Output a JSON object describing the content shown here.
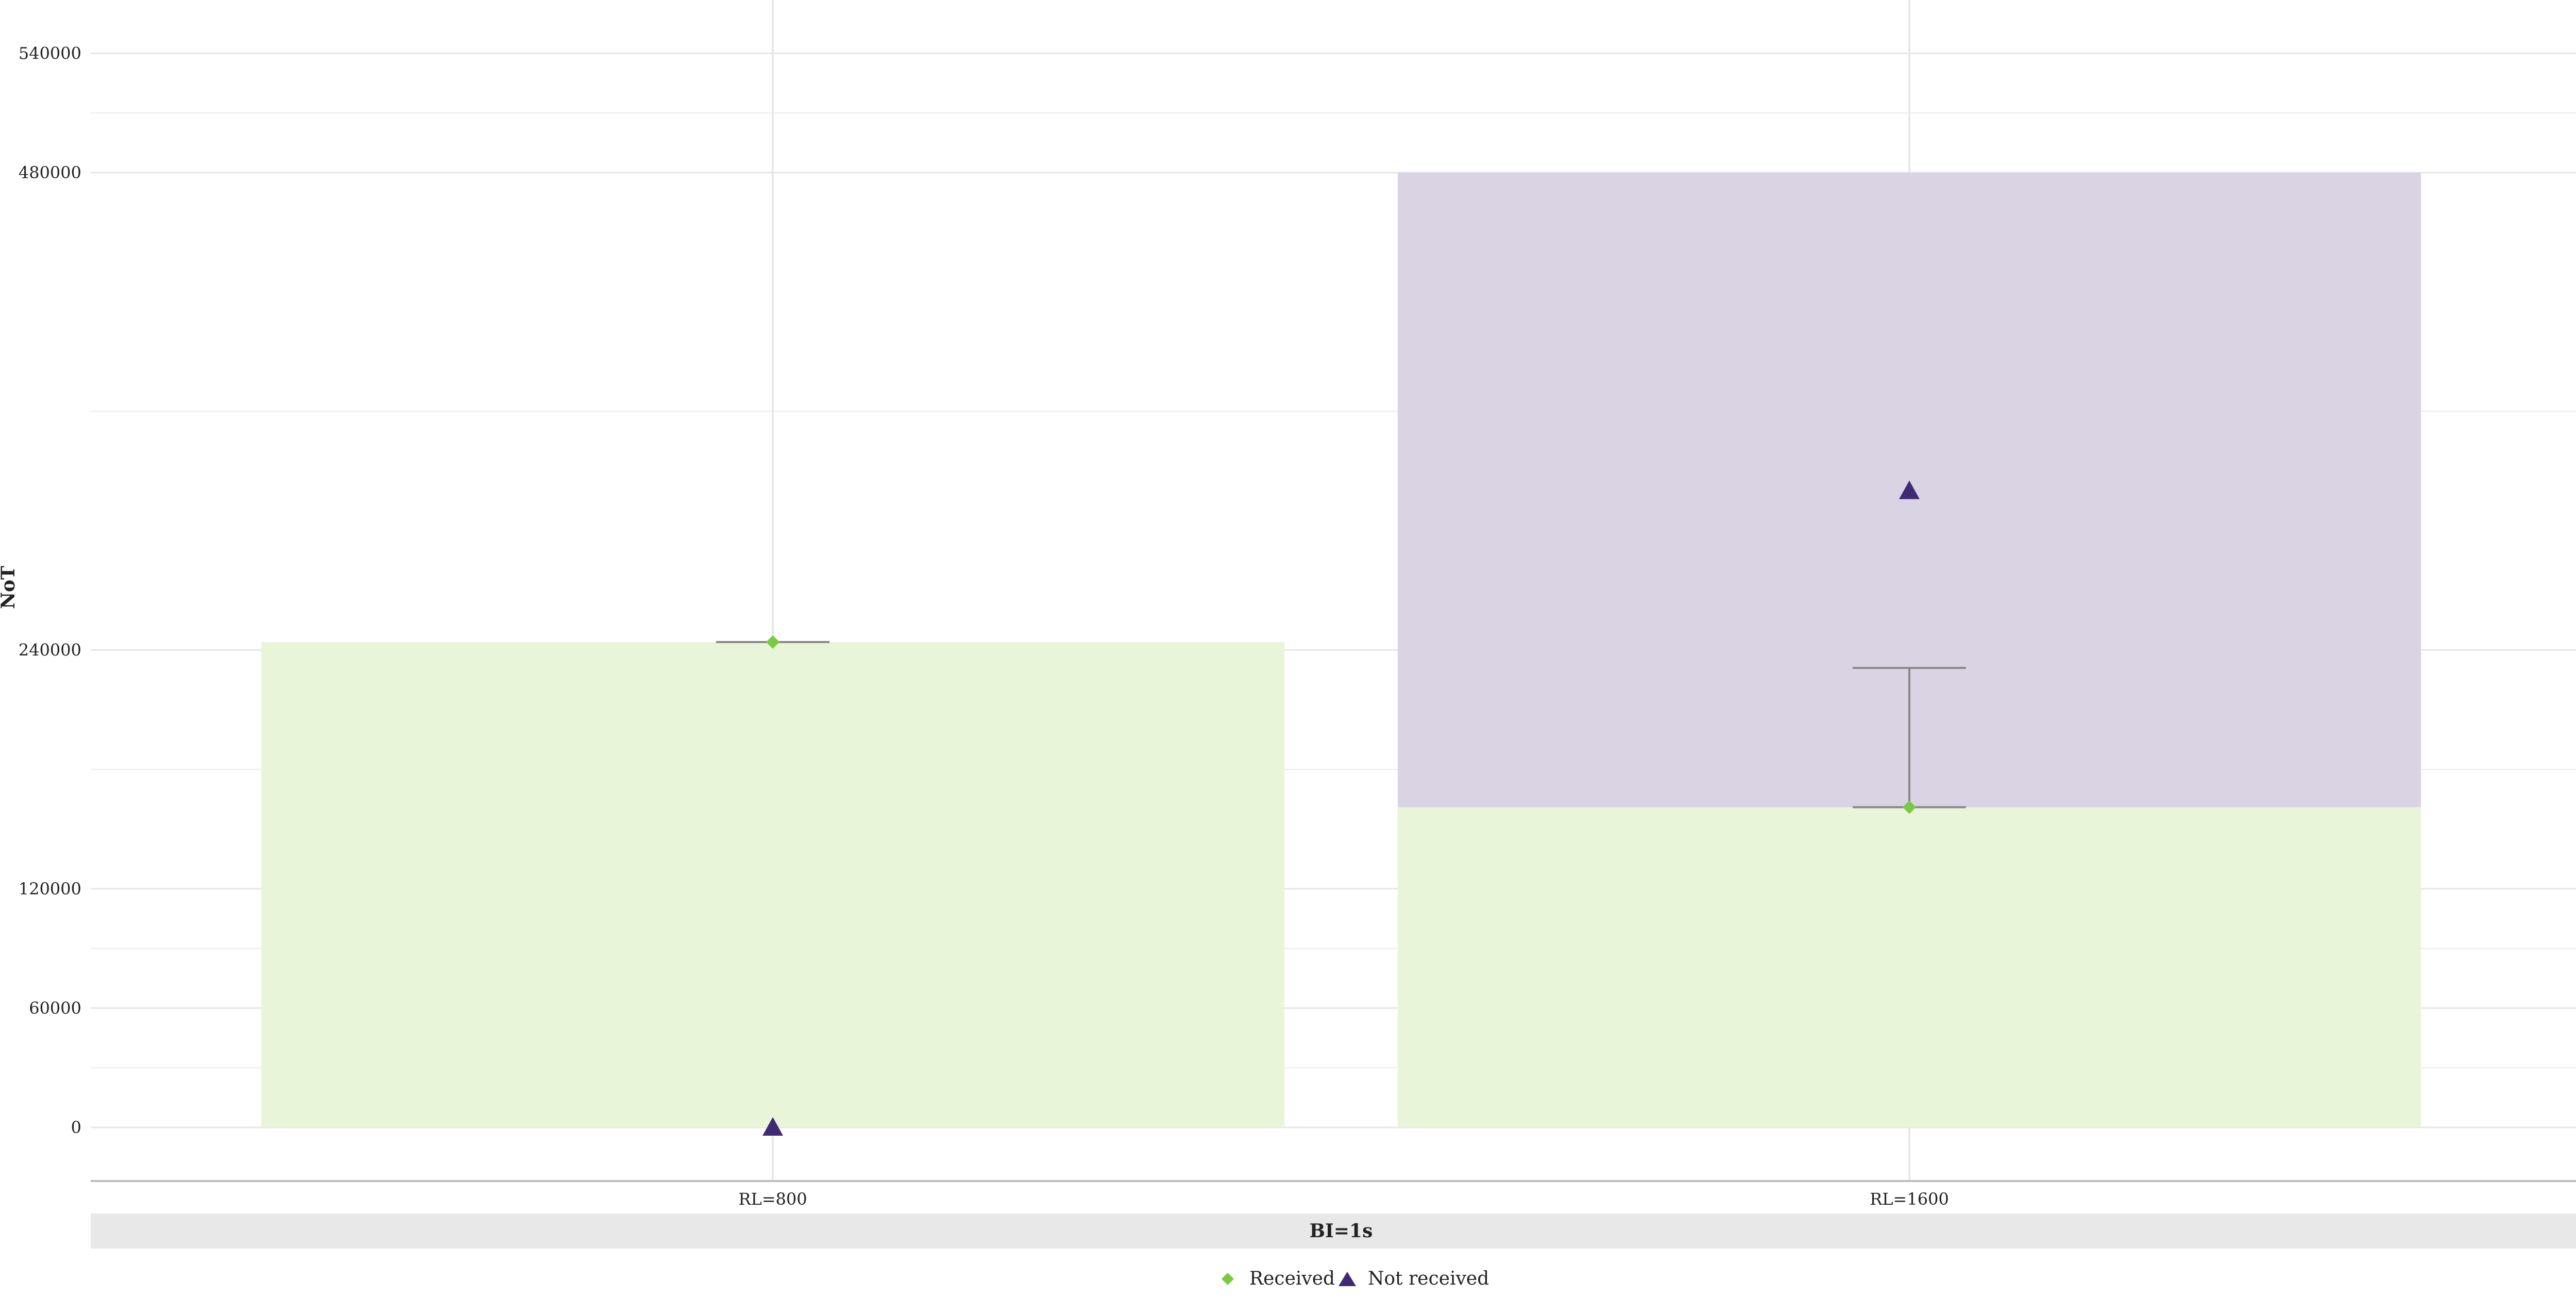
{
  "chart_data": {
    "type": "bar",
    "stacked": true,
    "categories": [
      "RL=800",
      "RL=1600"
    ],
    "facet_label": "BI=1s",
    "ylabel": "NoT",
    "xlabel": "",
    "ylim": [
      -36000,
      572000
    ],
    "yticks": [
      0,
      60000,
      120000,
      240000,
      480000,
      540000
    ],
    "ytick_labels": [
      "0",
      "60000",
      "120000",
      "240000",
      "480000",
      "540000"
    ],
    "grid": true,
    "legend_position": "bottom",
    "series": [
      {
        "name": "Received",
        "bar_values": [
          244000,
          161000
        ],
        "point_values": [
          244000,
          161000
        ],
        "error_low": [
          244000,
          161000
        ],
        "error_high": [
          244000,
          231000
        ],
        "marker": "diamond",
        "color": "#7ac943",
        "fill_color": "#e8f5d9"
      },
      {
        "name": "Not received",
        "bar_values": [
          0,
          319000
        ],
        "point_values": [
          0,
          320000
        ],
        "marker": "triangle",
        "color": "#3f2a73",
        "fill_color": "#dad3e4"
      }
    ],
    "colors": {
      "grid": "#e6e6e6",
      "axis": "#bdbdbd",
      "facet_strip": "#e8e8e8",
      "errorbar": "#888888"
    }
  }
}
